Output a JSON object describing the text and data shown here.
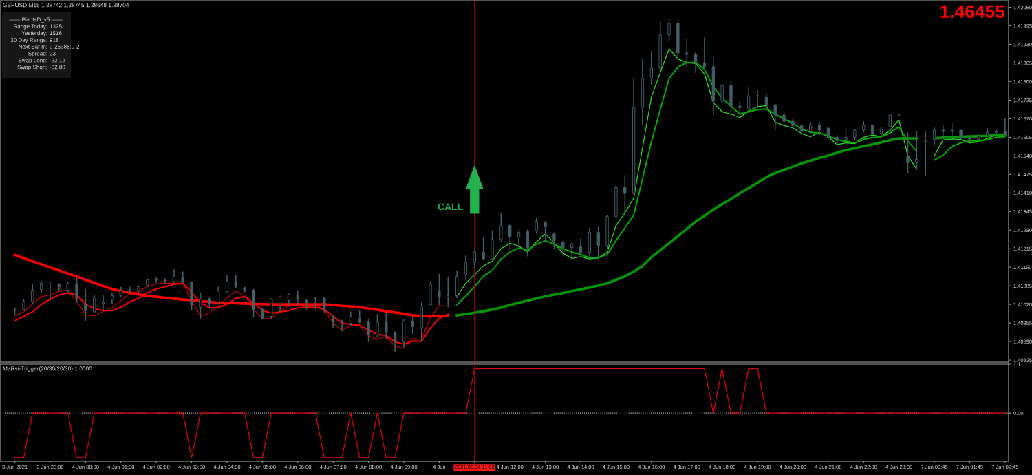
{
  "chart_data": [
    {
      "type": "candlestick",
      "title": "GBPUSD,M15 1.38742 1.38745 1.38648 1.38704",
      "categories": [
        "3 Jun 2021",
        null,
        null,
        null,
        "3 Jun 23:00",
        null,
        null,
        null,
        "4 Jun 00:00",
        null,
        null,
        null,
        "4 Jun 01:00",
        null,
        null,
        null,
        "4 Jun 02:00",
        null,
        null,
        null,
        "4 Jun 03:00",
        null,
        null,
        null,
        "4 Jun 04:00",
        null,
        null,
        null,
        "4 Jun 05:00",
        null,
        null,
        null,
        "4 Jun 06:00",
        null,
        null,
        null,
        "4 Jun 07:00",
        null,
        null,
        null,
        "4 Jun 08:00",
        null,
        null,
        null,
        "4 Jun 09:00",
        null,
        null,
        null,
        "4 Jun",
        null,
        null,
        null,
        "2021.06.04 11:00",
        null,
        null,
        null,
        "4 Jun 12:00",
        null,
        null,
        null,
        "4 Jun 13:00",
        null,
        null,
        null,
        "4 Jun 14:00",
        null,
        null,
        null,
        "4 Jun 15:00",
        null,
        null,
        null,
        "4 Jun 16:00",
        null,
        null,
        null,
        "4 Jun 17:00",
        null,
        null,
        null,
        "4 Jun 18:00",
        null,
        null,
        null,
        "4 Jun 19:00",
        null,
        null,
        null,
        "4 Jun 20:00",
        null,
        null,
        null,
        "4 Jun 21:00",
        null,
        null,
        null,
        "4 Jun 22:00",
        null,
        null,
        null,
        "4 Jun 23:00",
        null,
        null,
        null,
        "7 Jun 00:45",
        null,
        null,
        null,
        "7 Jun 01:45",
        null,
        null,
        null,
        "7 Jun 02:45"
      ],
      "color": "#42606a",
      "ohlc": [
        [
          1.41002,
          1.41009,
          1.40985,
          1.41002
        ],
        [
          1.41002,
          1.41038,
          1.41002,
          1.4103
        ],
        [
          1.4103,
          1.41091,
          1.41022,
          1.4107
        ],
        [
          1.41072,
          1.41103,
          1.41062,
          1.41094
        ],
        [
          1.41092,
          1.41099,
          1.41034,
          1.41092
        ],
        [
          1.41092,
          1.41092,
          1.41066,
          1.41082
        ],
        [
          1.4107,
          1.411,
          1.41062,
          1.41092
        ],
        [
          1.41092,
          1.41115,
          1.41026,
          1.41042
        ],
        [
          1.41022,
          1.41074,
          1.40962,
          1.40998
        ],
        [
          1.40994,
          1.41054,
          1.4099,
          1.41046
        ],
        [
          1.41022,
          1.41054,
          1.40998,
          1.41026
        ],
        [
          1.41038,
          1.41062,
          1.41022,
          1.4105
        ],
        [
          1.4105,
          1.41082,
          1.41046,
          1.4107
        ],
        [
          1.4107,
          1.41082,
          1.41062,
          1.4107
        ],
        [
          1.41066,
          1.41086,
          1.41058,
          1.41082
        ],
        [
          1.41086,
          1.41108,
          1.41082,
          1.41106
        ],
        [
          1.41106,
          1.41115,
          1.41094,
          1.41106
        ],
        [
          1.41106,
          1.41111,
          1.41094,
          1.41101
        ],
        [
          1.411,
          1.41143,
          1.41094,
          1.41119
        ],
        [
          1.41115,
          1.41135,
          1.41094,
          1.41099
        ],
        [
          1.41099,
          1.411,
          1.40998,
          1.41018
        ],
        [
          1.4101,
          1.41062,
          1.4097,
          1.41038
        ],
        [
          1.41038,
          1.41046,
          1.4101,
          1.41022
        ],
        [
          1.41026,
          1.41082,
          1.41022,
          1.41066
        ],
        [
          1.41066,
          1.41123,
          1.41062,
          1.411
        ],
        [
          1.411,
          1.41124,
          1.41078,
          1.41082
        ],
        [
          1.41078,
          1.41082,
          1.41062,
          1.4107
        ],
        [
          1.4107,
          1.41074,
          1.40974,
          1.41002
        ],
        [
          1.41002,
          1.41006,
          1.4097,
          1.4097
        ],
        [
          1.40978,
          1.41042,
          1.4097,
          1.41038
        ],
        [
          1.41018,
          1.4105,
          1.40994,
          1.41046
        ],
        [
          1.41034,
          1.41058,
          1.41018,
          1.41054
        ],
        [
          1.41054,
          1.4107,
          1.41018,
          1.41038
        ],
        [
          1.41034,
          1.41038,
          1.41002,
          1.41026
        ],
        [
          1.41042,
          1.41046,
          1.41002,
          1.41042
        ],
        [
          1.41042,
          1.41046,
          1.4099,
          1.40998
        ],
        [
          1.40978,
          1.40982,
          1.40938,
          1.40958
        ],
        [
          1.40962,
          1.40966,
          1.40925,
          1.40958
        ],
        [
          1.40954,
          1.40994,
          1.40946,
          1.40978
        ],
        [
          1.4097,
          1.40998,
          1.40954,
          1.40958
        ],
        [
          1.40958,
          1.4097,
          1.40889,
          1.40913
        ],
        [
          1.40913,
          1.40986,
          1.40905,
          1.40958
        ],
        [
          1.40958,
          1.4099,
          1.40897,
          1.40925
        ],
        [
          1.40922,
          1.40925,
          1.40853,
          1.40889
        ],
        [
          1.40889,
          1.4097,
          1.40869,
          1.40962
        ],
        [
          1.40962,
          1.40978,
          1.40917,
          1.40942
        ],
        [
          1.40938,
          1.4103,
          1.40889,
          1.41014
        ],
        [
          1.41018,
          1.41099,
          1.41018,
          1.41091
        ],
        [
          1.41066,
          1.41127,
          1.41018,
          1.41046
        ],
        [
          1.41046,
          1.41115,
          1.4101,
          1.4105
        ],
        [
          1.4105,
          1.41139,
          1.41042,
          1.41118
        ],
        [
          1.41123,
          1.41191,
          1.41106,
          1.41167
        ],
        [
          1.41167,
          1.41211,
          1.41147,
          1.41203
        ],
        [
          1.41203,
          1.41255,
          1.41175,
          1.41179
        ],
        [
          1.41179,
          1.4128,
          1.41175,
          1.41247
        ],
        [
          1.41247,
          1.4134,
          1.41239,
          1.41296
        ],
        [
          1.41296,
          1.413,
          1.41211,
          1.41255
        ],
        [
          1.41255,
          1.4128,
          1.41214,
          1.41272
        ],
        [
          1.41275,
          1.41284,
          1.41188,
          1.41219
        ],
        [
          1.41277,
          1.41323,
          1.41267,
          1.41311
        ],
        [
          1.41306,
          1.41311,
          1.41236,
          1.41292
        ],
        [
          1.41267,
          1.41272,
          1.41212,
          1.41243
        ],
        [
          1.41239,
          1.41243,
          1.41188,
          1.41219
        ],
        [
          1.41219,
          1.41239,
          1.41178,
          1.41231
        ],
        [
          1.41224,
          1.41251,
          1.41188,
          1.41202
        ],
        [
          1.41202,
          1.41287,
          1.41176,
          1.41272
        ],
        [
          1.41272,
          1.41292,
          1.41178,
          1.41226
        ],
        [
          1.41226,
          1.41333,
          1.41212,
          1.41328
        ],
        [
          1.41328,
          1.41436,
          1.41323,
          1.41429
        ],
        [
          1.41429,
          1.41473,
          1.41333,
          1.41408
        ],
        [
          1.41408,
          1.41811,
          1.41405,
          1.41709
        ],
        [
          1.41709,
          1.41878,
          1.41649,
          1.41811
        ],
        [
          1.41811,
          1.41907,
          1.41786,
          1.41847
        ],
        [
          1.41847,
          1.42011,
          1.41842,
          1.41963
        ],
        [
          1.41963,
          1.42021,
          1.41943,
          1.42004
        ],
        [
          1.42004,
          1.42021,
          1.41878,
          1.419
        ],
        [
          1.419,
          1.41948,
          1.41852,
          1.41895
        ],
        [
          1.41895,
          1.41902,
          1.4183,
          1.41866
        ],
        [
          1.41866,
          1.41955,
          1.41842,
          1.41852
        ],
        [
          1.41852,
          1.41888,
          1.41683,
          1.41731
        ],
        [
          1.41731,
          1.41791,
          1.41721,
          1.41786
        ],
        [
          1.41786,
          1.41803,
          1.41685,
          1.41714
        ],
        [
          1.41714,
          1.41731,
          1.41695,
          1.41709
        ],
        [
          1.41707,
          1.41779,
          1.41702,
          1.4175
        ],
        [
          1.4175,
          1.4177,
          1.41707,
          1.4175
        ],
        [
          1.41745,
          1.41758,
          1.41709,
          1.41719
        ],
        [
          1.41719,
          1.41719,
          1.4163,
          1.41683
        ],
        [
          1.41683,
          1.41695,
          1.41654,
          1.41661
        ],
        [
          1.41661,
          1.41671,
          1.41637,
          1.41646
        ],
        [
          1.41646,
          1.41646,
          1.41613,
          1.41625
        ],
        [
          1.41625,
          1.41659,
          1.41622,
          1.41649
        ],
        [
          1.41649,
          1.41661,
          1.41613,
          1.4163
        ],
        [
          1.41637,
          1.41642,
          1.41598,
          1.41605
        ],
        [
          1.41605,
          1.41613,
          1.41574,
          1.41593
        ],
        [
          1.41598,
          1.41634,
          1.41598,
          1.41605
        ],
        [
          1.41605,
          1.41634,
          1.41593,
          1.4163
        ],
        [
          1.4163,
          1.41661,
          1.41622,
          1.41649
        ],
        [
          1.41646,
          1.41649,
          1.41613,
          1.41618
        ],
        [
          1.41618,
          1.41642,
          1.41605,
          1.41634
        ],
        [
          1.41642,
          1.41683,
          1.41642,
          1.41683
        ],
        [
          1.41683,
          1.41684,
          1.4168,
          1.41683
        ],
        [
          1.41538,
          1.41622,
          1.41478,
          1.41516
        ],
        [
          1.41516,
          1.41625,
          1.41492,
          1.41528
        ],
        [
          1.41591,
          1.41625,
          1.41468,
          1.41591
        ],
        [
          1.41598,
          1.41642,
          1.41576,
          1.4163
        ],
        [
          1.4163,
          1.41649,
          1.41605,
          1.41625
        ],
        [
          1.41625,
          1.41654,
          1.41601,
          1.4163
        ],
        [
          1.4163,
          1.4163,
          1.41598,
          1.41605
        ],
        [
          1.41605,
          1.41605,
          1.41589,
          1.41598
        ],
        [
          1.41598,
          1.41618,
          1.41593,
          1.4161
        ],
        [
          1.4161,
          1.41637,
          1.4161,
          1.41622
        ],
        [
          1.41622,
          1.41634,
          1.41613,
          1.41625
        ],
        [
          1.41625,
          1.41673,
          1.41605,
          1.41615
        ]
      ],
      "series": [
        {
          "type": "line",
          "color": "#c00000",
          "values": [
            1.4098,
            1.40994,
            1.41021,
            1.41047,
            1.41053,
            1.41066,
            1.4107,
            1.41031,
            1.40984,
            1.4098,
            1.40995,
            1.41008,
            1.41033,
            1.41059,
            1.41066,
            1.41082,
            1.41092,
            1.41094,
            1.41094,
            1.41094,
            1.41033,
            1.40979,
            1.4099,
            1.41015,
            1.41043,
            1.41066,
            1.4105,
            1.41004,
            1.4097,
            1.4097,
            1.41,
            1.41014,
            1.41018,
            1.41014,
            1.41018,
            1.41002,
            1.40954,
            1.4093,
            1.40945,
            1.40947,
            1.4091,
            1.40898,
            1.40909,
            1.40874,
            1.40867,
            1.40901,
            1.40898,
            1.40975,
            1.41016,
            1.41014,
            null,
            null,
            null,
            null,
            null,
            null,
            null,
            null,
            null,
            null,
            null,
            null,
            null,
            null,
            null,
            null,
            null,
            null,
            null,
            null,
            null,
            null,
            null,
            null,
            null,
            null,
            null,
            null,
            null,
            null,
            null,
            null,
            null,
            null,
            null,
            null,
            null,
            null,
            null,
            null,
            null,
            null,
            null,
            null,
            null,
            null,
            null,
            null,
            null,
            null,
            null,
            null,
            null,
            null,
            null,
            null,
            null,
            null,
            null,
            null,
            null,
            null,
            null
          ]
        },
        {
          "type": "line",
          "color": "#ff0000",
          "values": [
            1.40963,
            1.40978,
            1.40994,
            1.4102,
            1.41038,
            1.41053,
            1.4106,
            1.41053,
            1.41021,
            1.41005,
            1.40998,
            1.40998,
            1.4101,
            1.41029,
            1.41041,
            1.41061,
            1.41074,
            1.41082,
            1.4109,
            1.41094,
            1.41062,
            1.41026,
            1.41008,
            1.41009,
            1.41021,
            1.41041,
            1.41048,
            1.41024,
            1.41,
            1.40989,
            1.40994,
            1.40998,
            1.41008,
            1.4101,
            1.4101,
            1.41002,
            1.40978,
            1.40955,
            1.4095,
            1.40947,
            1.4093,
            1.40915,
            1.40912,
            1.40889,
            1.40881,
            1.40892,
            1.40891,
            1.40937,
            1.40971,
            1.40986,
            null,
            null,
            null,
            null,
            null,
            null,
            null,
            null,
            null,
            null,
            null,
            null,
            null,
            null,
            null,
            null,
            null,
            null,
            null,
            null,
            null,
            null,
            null,
            null,
            null,
            null,
            null,
            null,
            null,
            null,
            null,
            null,
            null,
            null,
            null,
            null,
            null,
            null,
            null,
            null,
            null,
            null,
            null,
            null,
            null,
            null,
            null,
            null,
            null,
            null,
            null,
            null,
            null,
            null,
            null,
            null,
            null,
            null,
            null,
            null,
            null,
            null,
            null
          ]
        },
        {
          "type": "line",
          "color": "#ff0000",
          "values": [
            1.41193,
            1.41182,
            1.41171,
            1.4116,
            1.41149,
            1.41139,
            1.41128,
            1.41118,
            1.41106,
            1.41095,
            1.41084,
            1.41074,
            1.41067,
            1.4106,
            1.41055,
            1.4105,
            1.41047,
            1.41043,
            1.4104,
            1.41037,
            1.41035,
            1.41031,
            1.41029,
            1.41026,
            1.41025,
            1.41024,
            1.41023,
            1.41022,
            1.41021,
            1.4102,
            1.4102,
            1.4102,
            1.4102,
            1.4102,
            1.4102,
            1.4102,
            1.41018,
            1.41015,
            1.41013,
            1.4101,
            1.41006,
            1.41001,
            1.40996,
            1.40992,
            1.40987,
            1.40982,
            1.4098,
            1.4098,
            1.4098,
            1.4098,
            null,
            null,
            null,
            null,
            null,
            null,
            null,
            null,
            null,
            null,
            null,
            null,
            null,
            null,
            null,
            null,
            null,
            null,
            null,
            null,
            null,
            null,
            null,
            null,
            null,
            null,
            null,
            null,
            null,
            null,
            null,
            null,
            null,
            null,
            null,
            null,
            null,
            null,
            null,
            null,
            null,
            null,
            null,
            null,
            null,
            null,
            null,
            null,
            null,
            null,
            null,
            null,
            null,
            null,
            null,
            null,
            null,
            null,
            null,
            null,
            null,
            null,
            null
          ]
        },
        {
          "type": "line",
          "color": "#2ee02e",
          "values": [
            null,
            null,
            null,
            null,
            null,
            null,
            null,
            null,
            null,
            null,
            null,
            null,
            null,
            null,
            null,
            null,
            null,
            null,
            null,
            null,
            null,
            null,
            null,
            null,
            null,
            null,
            null,
            null,
            null,
            null,
            null,
            null,
            null,
            null,
            null,
            null,
            null,
            null,
            null,
            null,
            null,
            null,
            null,
            null,
            null,
            null,
            null,
            null,
            null,
            null,
            1.41046,
            1.41094,
            1.41124,
            1.41155,
            1.41171,
            1.41215,
            1.41234,
            1.41224,
            1.41203,
            1.41239,
            1.41267,
            1.41235,
            1.41199,
            1.41181,
            1.41187,
            1.41179,
            1.41183,
            1.41203,
            1.41296,
            1.4134,
            1.41392,
            1.41569,
            1.41746,
            1.41831,
            1.41915,
            1.41879,
            1.41867,
            1.41863,
            1.41827,
            1.41726,
            1.41694,
            1.41686,
            1.41674,
            1.41698,
            1.41712,
            1.41716,
            1.41658,
            1.41646,
            1.41638,
            1.41618,
            1.41607,
            1.41622,
            1.41607,
            1.41579,
            1.41585,
            1.41583,
            1.41605,
            1.41613,
            1.41607,
            1.4163,
            1.41666,
            1.41541,
            1.41493,
            null,
            1.4154,
            1.41596,
            1.41599,
            1.41597,
            1.41585,
            1.41589,
            1.41601,
            1.41613,
            1.41615
          ]
        },
        {
          "type": "line",
          "color": "#00b000",
          "values": [
            null,
            null,
            null,
            null,
            null,
            null,
            null,
            null,
            null,
            null,
            null,
            null,
            null,
            null,
            null,
            null,
            null,
            null,
            null,
            null,
            null,
            null,
            null,
            null,
            null,
            null,
            null,
            null,
            null,
            null,
            null,
            null,
            null,
            null,
            null,
            null,
            null,
            null,
            null,
            null,
            null,
            null,
            null,
            null,
            null,
            null,
            null,
            null,
            null,
            null,
            1.41018,
            1.4105,
            1.41082,
            1.41119,
            1.41139,
            1.41179,
            1.41203,
            1.41217,
            1.41211,
            1.41231,
            1.41243,
            1.41231,
            1.41215,
            1.41203,
            1.41195,
            1.41183,
            1.41183,
            1.41195,
            1.41243,
            1.41288,
            1.41332,
            1.41461,
            1.41589,
            1.41702,
            1.41811,
            1.41851,
            1.41867,
            1.41867,
            1.41843,
            1.41782,
            1.41742,
            1.41714,
            1.41686,
            1.41694,
            1.41702,
            1.41704,
            1.41686,
            1.4167,
            1.41654,
            1.41634,
            1.41622,
            1.4162,
            1.4161,
            1.41596,
            1.41591,
            1.41585,
            1.41597,
            1.41604,
            1.41607,
            1.4162,
            1.41642,
            1.41591,
            1.41557,
            null,
            1.41525,
            1.41543,
            1.41573,
            1.41585,
            1.41593,
            1.41591,
            1.41597,
            1.41605,
            1.41607
          ]
        },
        {
          "type": "line",
          "color": "#009a00",
          "values": [
            null,
            null,
            null,
            null,
            null,
            null,
            null,
            null,
            null,
            null,
            null,
            null,
            null,
            null,
            null,
            null,
            null,
            null,
            null,
            null,
            null,
            null,
            null,
            null,
            null,
            null,
            null,
            null,
            null,
            null,
            null,
            null,
            null,
            null,
            null,
            null,
            null,
            null,
            null,
            null,
            null,
            null,
            null,
            null,
            null,
            null,
            null,
            null,
            null,
            null,
            1.40982,
            1.40986,
            1.40991,
            1.40996,
            1.41002,
            1.41009,
            1.41018,
            1.41026,
            1.41033,
            1.41041,
            1.41048,
            1.41054,
            1.4106,
            1.41067,
            1.41073,
            1.41079,
            1.41086,
            1.41094,
            1.41106,
            1.41118,
            1.41135,
            1.41154,
            1.41185,
            1.4121,
            1.41234,
            1.41259,
            1.41284,
            1.4131,
            1.4133,
            1.41352,
            1.41371,
            1.41389,
            1.41409,
            1.41427,
            1.41446,
            1.41465,
            1.4148,
            1.41491,
            1.41502,
            1.41514,
            1.41523,
            1.41533,
            1.41541,
            1.41551,
            1.4156,
            1.41567,
            1.41574,
            1.4158,
            1.41587,
            1.41595,
            1.41601,
            1.41601,
            1.41601,
            null,
            1.41601,
            1.41604,
            1.41605,
            1.41607,
            1.41608,
            1.41609,
            1.4161,
            1.41613,
            1.41615
          ]
        }
      ],
      "ylim": [
        1.40818,
        1.42083
      ],
      "yticks": [
        {
          "value": 1.4206,
          "label": "1.42060"
        },
        1.41995,
        {
          "value": 1.4193,
          "label": "1.41930"
        },
        1.41865,
        {
          "value": 1.418,
          "label": "1.41800"
        },
        1.41735,
        {
          "value": 1.4167,
          "label": "1.41670"
        },
        1.41605,
        {
          "value": 1.4154,
          "label": "1.41540"
        },
        1.41475,
        {
          "value": 1.4141,
          "label": "1.41410"
        },
        1.41345,
        {
          "value": 1.4128,
          "label": "1.41280"
        },
        1.41215,
        {
          "value": 1.4115,
          "label": "1.41150"
        },
        1.41085,
        {
          "value": 1.4102,
          "label": "1.41020"
        },
        1.40955,
        {
          "value": 1.4089,
          "label": "1.40890"
        },
        1.40825
      ],
      "tick_labels": "y",
      "ref_lines": [
        {
          "axis": "x",
          "value": "2021.06.04 11:00",
          "color": "#b00000"
        }
      ],
      "annotations": [
        "1.46455",
        {
          "text": "CALL",
          "x": "2021.06.04 11:00",
          "y": 1.41424
        },
        "—— PivotsD_v5 ——",
        "Range Today:",
        "1325",
        "Yesterday:",
        "1516",
        "30 Day Range:",
        "918",
        "Next Bar In:",
        "0-26385:0-2",
        "Spread:",
        "23",
        "Swap Long:",
        "-22.12",
        "Swap Short:",
        "-32.80"
      ]
    },
    {
      "type": "line",
      "title": "MaRsi-Trigger(20/30/20/30) 1.0000",
      "categories": [
        "3 Jun 2021",
        null,
        null,
        null,
        "3 Jun 23:00",
        null,
        null,
        null,
        "4 Jun 00:00",
        null,
        null,
        null,
        "4 Jun 01:00",
        null,
        null,
        null,
        "4 Jun 02:00",
        null,
        null,
        null,
        "4 Jun 03:00",
        null,
        null,
        null,
        "4 Jun 04:00",
        null,
        null,
        null,
        "4 Jun 05:00",
        null,
        null,
        null,
        "4 Jun 06:00",
        null,
        null,
        null,
        "4 Jun 07:00",
        null,
        null,
        null,
        "4 Jun 08:00",
        null,
        null,
        null,
        "4 Jun 09:00",
        null,
        null,
        null,
        "4 Jun",
        null,
        null,
        null,
        "2021.06.04 11:00",
        null,
        null,
        null,
        "4 Jun 12:00",
        null,
        null,
        null,
        "4 Jun 13:00",
        null,
        null,
        null,
        "4 Jun 14:00",
        null,
        null,
        null,
        "4 Jun 15:00",
        null,
        null,
        null,
        "4 Jun 16:00",
        null,
        null,
        null,
        "4 Jun 17:00",
        null,
        null,
        null,
        "4 Jun 18:00",
        null,
        null,
        null,
        "4 Jun 19:00",
        null,
        null,
        null,
        "4 Jun 20:00",
        null,
        null,
        null,
        "4 Jun 21:00",
        null,
        null,
        null,
        "4 Jun 22:00",
        null,
        null,
        null,
        "4 Jun 23:00",
        null,
        null,
        null,
        "7 Jun 00:45",
        null,
        null,
        null,
        "7 Jun 01:45",
        null,
        null,
        null,
        "7 Jun 02:45"
      ],
      "color": "#e60000",
      "values": [
        -1,
        -1,
        0,
        0,
        0,
        0,
        0,
        -1,
        -1,
        0,
        0,
        0,
        0,
        0,
        0,
        0,
        0,
        0,
        0,
        0,
        -1,
        0,
        0,
        0,
        0,
        0,
        0,
        -1,
        -1,
        0,
        0,
        0,
        0,
        0,
        0,
        -1,
        -1,
        -1,
        0,
        -1,
        -1,
        0,
        -1,
        -1,
        0,
        0,
        0,
        0,
        0,
        0,
        0,
        0,
        1,
        1,
        1,
        1,
        1,
        1,
        1,
        1,
        1,
        1,
        1,
        1,
        1,
        1,
        1,
        1,
        1,
        1,
        1,
        1,
        1,
        1,
        1,
        1,
        1,
        1,
        1,
        0,
        1,
        0,
        0,
        1,
        1,
        0,
        0,
        0,
        0,
        0,
        0,
        0,
        0,
        0,
        0,
        0,
        0,
        0,
        0,
        0,
        0,
        0,
        0,
        0,
        0,
        0,
        0,
        0,
        0,
        0,
        0,
        0,
        0
      ],
      "ylim": [
        -1.08,
        1.1
      ],
      "yticks": [
        1.1,
        {
          "value": 0,
          "label": "0.00"
        }
      ],
      "ref_lines": [
        {
          "axis": "x",
          "value": "2021.06.04 11:00",
          "color": "#b00000"
        },
        {
          "axis": "y",
          "value": 0,
          "color": "#b4b4b4",
          "line_style": "dotted"
        }
      ]
    }
  ]
}
